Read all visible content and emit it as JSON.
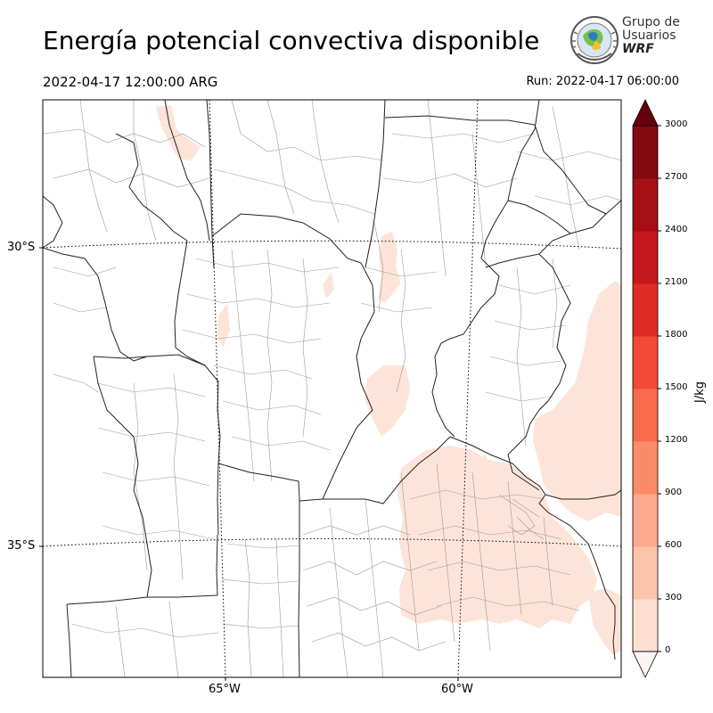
{
  "title": "Energía potencial convectiva disponible",
  "valid_time": "2022-04-17 12:00:00 ARG",
  "run_time": "Run: 2022-04-17 06:00:00",
  "logo": {
    "line1": "Grupo de",
    "line2": "Usuarios",
    "line3": "WRF"
  },
  "axes": {
    "lat_labels": [
      "30°S",
      "35°S"
    ],
    "lon_labels": [
      "65°W",
      "60°W"
    ]
  },
  "colorbar": {
    "unit": "J/kg",
    "ticks": [
      "0",
      "300",
      "600",
      "900",
      "1200",
      "1500",
      "1800",
      "2100",
      "2400",
      "2700",
      "3000"
    ],
    "extend": "both",
    "colors": [
      "#fff5f0",
      "#fee0d2",
      "#fcc5ab",
      "#fcaa8e",
      "#fc8b6a",
      "#fa6b4b",
      "#f24a36",
      "#df2c26",
      "#c5171c",
      "#a50f15",
      "#820a10",
      "#67000d"
    ]
  },
  "colors": {
    "cape_low": "#fee4d8",
    "border": "#222222",
    "dept_line": "#9a9a9a"
  }
}
